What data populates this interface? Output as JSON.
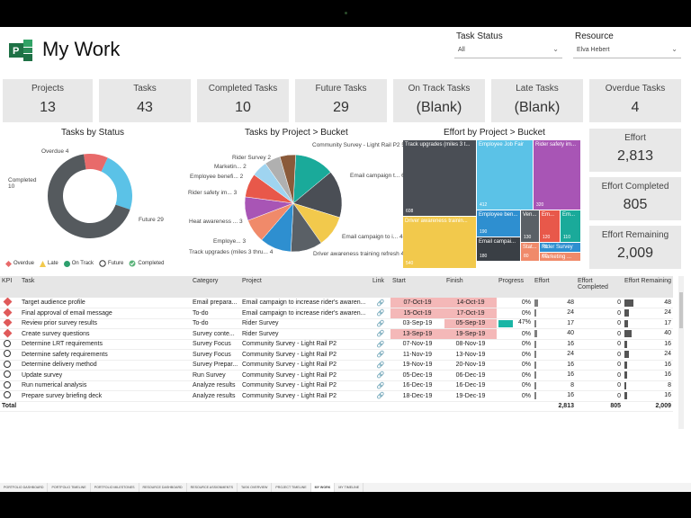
{
  "header": {
    "title": "My Work",
    "task_status_label": "Task Status",
    "task_status_value": "All",
    "resource_label": "Resource",
    "resource_value": "Elva Hebert"
  },
  "kpi_cards": [
    {
      "label": "Projects",
      "value": "13"
    },
    {
      "label": "Tasks",
      "value": "43"
    },
    {
      "label": "Completed Tasks",
      "value": "10"
    },
    {
      "label": "Future Tasks",
      "value": "29"
    },
    {
      "label": "On Track Tasks",
      "value": "(Blank)"
    },
    {
      "label": "Late Tasks",
      "value": "(Blank)"
    },
    {
      "label": "Overdue Tasks",
      "value": "4"
    }
  ],
  "effort_cards": [
    {
      "label": "Effort",
      "value": "2,813"
    },
    {
      "label": "Effort Completed",
      "value": "805"
    },
    {
      "label": "Effort Remaining",
      "value": "2,009"
    }
  ],
  "colors": {
    "overdue": "#e86a6a",
    "completed": "#5bc2e7",
    "future": "#555a5e",
    "late": "#f2c94c",
    "on_track": "#2ea06e",
    "accent_highlight": "#f4b8b8",
    "progress": "#1ab5a5"
  },
  "chart_data": [
    {
      "type": "pie",
      "title": "Tasks by Status",
      "categories": [
        "Overdue",
        "Completed",
        "Future"
      ],
      "values": [
        4,
        10,
        29
      ],
      "labels": [
        "Overdue 4",
        "Completed 10",
        "Future 29"
      ],
      "legend": [
        "Overdue",
        "Late",
        "On Track",
        "Future",
        "Completed"
      ],
      "legend_position": "bottom-left"
    },
    {
      "type": "pie",
      "title": "Tasks by Project > Bucket",
      "categories": [
        "Community Survey - Light Rail P2",
        "Email campaign t...",
        "Email campaign to i...",
        "Driver awareness training refresh",
        "Track upgrades (miles 3 thru...",
        "Employe...",
        "Heat awareness ...",
        "Rider safety im...",
        "Employee benefi...",
        "Marketin...",
        "Rider Survey"
      ],
      "values": [
        5,
        6,
        4,
        4,
        4,
        3,
        3,
        3,
        2,
        2,
        2
      ],
      "labels": [
        "Community Survey - Light Rail P2 5",
        "Email campaign t... 6",
        "Email campaign to i... 4",
        "Driver awareness training refresh 4",
        "Track upgrades (miles 3 thru... 4",
        "Employe... 3",
        "Heat awareness ... 3",
        "Rider safety im... 3",
        "Employee benefi... 2",
        "Marketin... 2",
        "Rider Survey 2"
      ]
    },
    {
      "type": "treemap",
      "title": "Effort by Project > Bucket",
      "items": [
        {
          "label": "Track upgrades (miles 3 t...",
          "value": 608
        },
        {
          "label": "Driver awareness trainin...",
          "value": 540
        },
        {
          "label": "Employee Job Fair",
          "value": 412
        },
        {
          "label": "Rider safety im...",
          "value": 320
        },
        {
          "label": "Employee ben...",
          "value": 190
        },
        {
          "label": "Ven...",
          "value": 130
        },
        {
          "label": "Em...",
          "value": 120
        },
        {
          "label": "Em...",
          "value": 110
        },
        {
          "label": "Email campai...",
          "value": 180
        },
        {
          "label": "Stat...",
          "value": 80
        },
        {
          "label": "Rider Survey",
          "value": 70
        },
        {
          "label": "Marketing ...",
          "value": 60
        }
      ]
    }
  ],
  "table": {
    "headers": [
      "KPI",
      "Task",
      "Category",
      "Project",
      "Link",
      "Start",
      "Finish",
      "Progress",
      "Effort",
      "Effort Completed",
      "Effort Remaining"
    ],
    "rows": [
      {
        "kpi": "overdue",
        "task": "Target audience profile",
        "category": "Email prepara...",
        "project": "Email campaign to increase rider's awaren...",
        "start": "07-Oct-19",
        "finish": "14-Oct-19",
        "progress": "0%",
        "effort": 48,
        "completed": 0,
        "remaining": 48,
        "hl_start": true,
        "hl_finish": true
      },
      {
        "kpi": "overdue",
        "task": "Final approval of email message",
        "category": "To-do",
        "project": "Email campaign to increase rider's awaren...",
        "start": "15-Oct-19",
        "finish": "17-Oct-19",
        "progress": "0%",
        "effort": 24,
        "completed": 0,
        "remaining": 24,
        "hl_start": true,
        "hl_finish": true
      },
      {
        "kpi": "overdue",
        "task": "Review prior survey results",
        "category": "To-do",
        "project": "Rider Survey",
        "start": "03-Sep-19",
        "finish": "05-Sep-19",
        "progress": "47%",
        "effort": 17,
        "completed": 0,
        "remaining": 17,
        "hl_start": false,
        "hl_finish": true
      },
      {
        "kpi": "overdue",
        "task": "Create survey questions",
        "category": "Survey conte...",
        "project": "Rider Survey",
        "start": "13-Sep-19",
        "finish": "19-Sep-19",
        "progress": "0%",
        "effort": 40,
        "completed": 0,
        "remaining": 40,
        "hl_start": true,
        "hl_finish": true
      },
      {
        "kpi": "future",
        "task": "Determine LRT requirements",
        "category": "Survey Focus",
        "project": "Community Survey - Light Rail P2",
        "start": "07-Nov-19",
        "finish": "08-Nov-19",
        "progress": "0%",
        "effort": 16,
        "completed": 0,
        "remaining": 16,
        "hl_start": false,
        "hl_finish": false
      },
      {
        "kpi": "future",
        "task": "Determine safety requirements",
        "category": "Survey Focus",
        "project": "Community Survey - Light Rail P2",
        "start": "11-Nov-19",
        "finish": "13-Nov-19",
        "progress": "0%",
        "effort": 24,
        "completed": 0,
        "remaining": 24,
        "hl_start": false,
        "hl_finish": false
      },
      {
        "kpi": "future",
        "task": "Determine delivery method",
        "category": "Survey Prepar...",
        "project": "Community Survey - Light Rail P2",
        "start": "19-Nov-19",
        "finish": "20-Nov-19",
        "progress": "0%",
        "effort": 16,
        "completed": 0,
        "remaining": 16,
        "hl_start": false,
        "hl_finish": false
      },
      {
        "kpi": "future",
        "task": "Update survey",
        "category": "Run Survey",
        "project": "Community Survey - Light Rail P2",
        "start": "05-Dec-19",
        "finish": "06-Dec-19",
        "progress": "0%",
        "effort": 16,
        "completed": 0,
        "remaining": 16,
        "hl_start": false,
        "hl_finish": false
      },
      {
        "kpi": "future",
        "task": "Run numerical analysis",
        "category": "Analyze results",
        "project": "Community Survey - Light Rail P2",
        "start": "16-Dec-19",
        "finish": "16-Dec-19",
        "progress": "0%",
        "effort": 8,
        "completed": 0,
        "remaining": 8,
        "hl_start": false,
        "hl_finish": false
      },
      {
        "kpi": "future",
        "task": "Prepare survey briefing deck",
        "category": "Analyze results",
        "project": "Community Survey - Light Rail P2",
        "start": "18-Dec-19",
        "finish": "19-Dec-19",
        "progress": "0%",
        "effort": 16,
        "completed": 0,
        "remaining": 16,
        "hl_start": false,
        "hl_finish": false
      }
    ],
    "total_label": "Total",
    "total_effort": "2,813",
    "total_completed": "805",
    "total_remaining": "2,009"
  },
  "page_tabs": [
    "PORTFOLIO DASHBOARD",
    "PORTFOLIO TIMELINE",
    "PORTFOLIO MILESTONES",
    "RESOURCE DASHBOARD",
    "RESOURCE ASSIGNMENTS",
    "TASK OVERVIEW",
    "PROJECT TIMELINE",
    "MY WORK",
    "MY TIMELINE"
  ],
  "active_tab": "MY WORK"
}
